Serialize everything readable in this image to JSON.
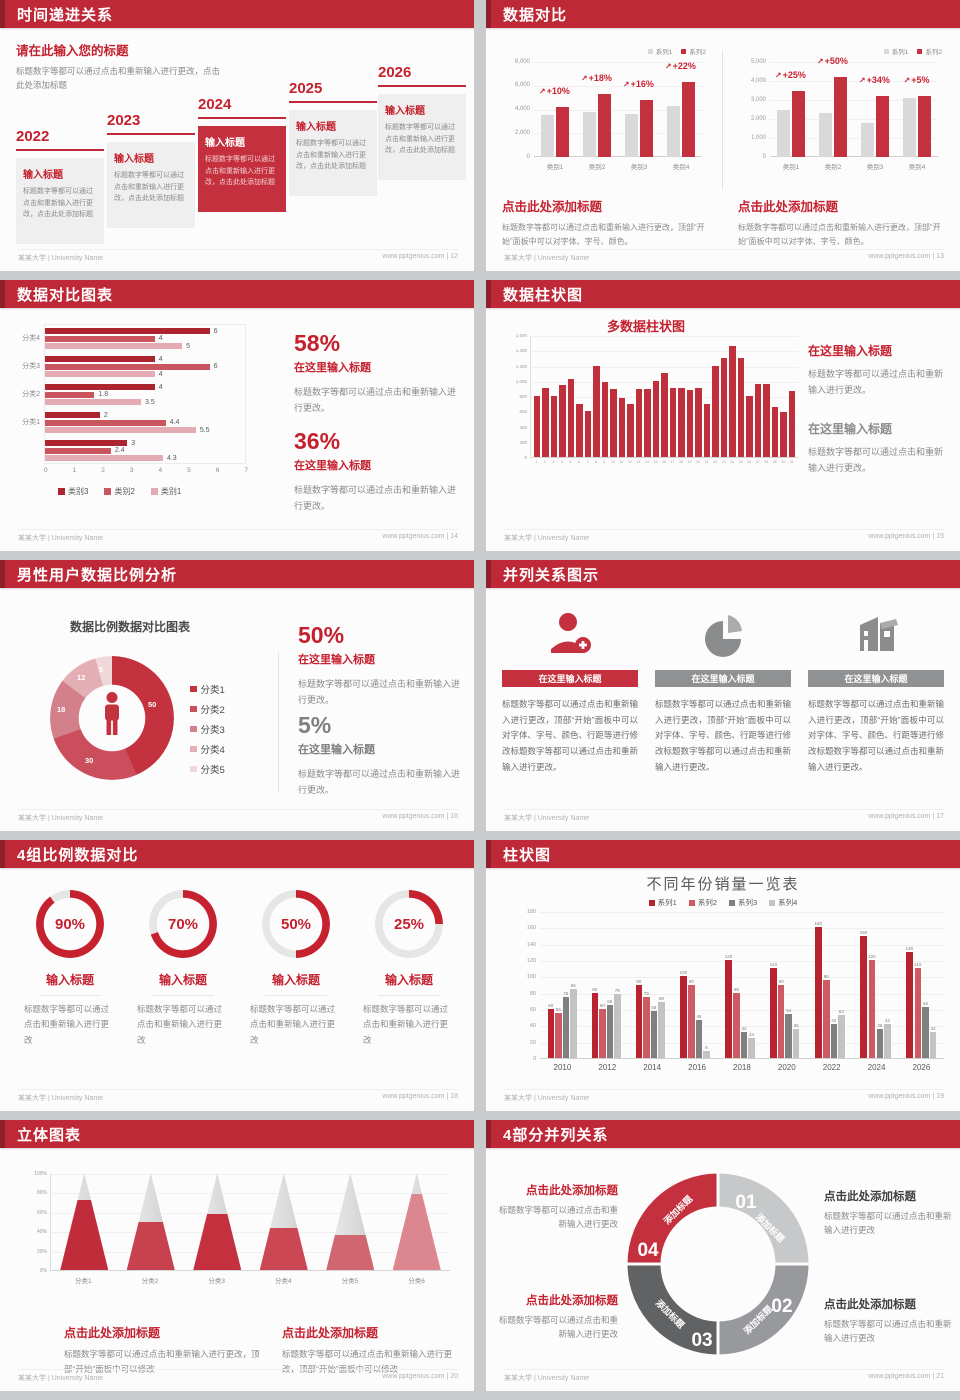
{
  "page": {
    "bg": "#C9CBCD",
    "slide_bg": "#FCFCFC",
    "accent_red": "#C5303E",
    "header_red": "#BE2837"
  },
  "footer": {
    "left": "某某大学 | University Name"
  },
  "slides": {
    "s1": {
      "title": "时间递进关系",
      "footer_right": "www.pptgenius.com | 12",
      "intro_title": "请在此输入您的标题",
      "intro_body": "标题数字等都可以通过点击和重新输入进行更改，点击此处添加标题",
      "items": [
        {
          "year": "2022",
          "t": "输入标题",
          "b": "标题数字等都可以通过点击和重新输入进行更改，点击此处添加标题"
        },
        {
          "year": "2023",
          "t": "输入标题",
          "b": "标题数字等都可以通过点击和重新输入进行更改，点击此处添加标题"
        },
        {
          "year": "2024",
          "t": "输入标题",
          "b": "标题数字等都可以通过点击和重新输入进行更改，点击此处添加标题"
        },
        {
          "year": "2025",
          "t": "输入标题",
          "b": "标题数字等都可以通过点击和重新输入进行更改，点击此处添加标题"
        },
        {
          "year": "2026",
          "t": "输入标题",
          "b": "标题数字等都可以通过点击和重新输入进行更改，点击此处添加标题"
        }
      ]
    },
    "s2": {
      "title": "数据对比",
      "footer_right": "www.pptgenius.com | 13",
      "caption_title": "点击此处添加标题",
      "caption_body": "标题数字等都可以通过点击和重新输入进行更改，顶部“开始”面板中可以对字体、字号、颜色。"
    },
    "s3": {
      "title": "数据对比图表",
      "footer_right": "www.pptgenius.com | 14",
      "stat1": {
        "pct": "58%",
        "t": "在这里输入标题",
        "b": "标题数字等都可以通过点击和重新输入进行更改。"
      },
      "stat2": {
        "pct": "36%",
        "t": "在这里输入标题",
        "b": "标题数字等都可以通过点击和重新输入进行更改。"
      }
    },
    "s4": {
      "title": "数据柱状图",
      "footer_right": "www.pptgenius.com | 15",
      "chart_title": "多数据柱状图",
      "block1": {
        "t": "在这里输入标题",
        "b": "标题数字等都可以通过点击和重新输入进行更改。"
      },
      "block2": {
        "t": "在这里输入标题",
        "b": "标题数字等都可以通过点击和重新输入进行更改。"
      }
    },
    "s5": {
      "title": "男性用户数据比例分析",
      "footer_right": "www.pptgenius.com | 16",
      "chart_title": "数据比例数据对比图表",
      "stat1": {
        "pct": "50%",
        "t": "在这里输入标题",
        "b": "标题数字等都可以通过点击和重新输入进行更改。"
      },
      "stat2": {
        "pct": "5%",
        "t": "在这里输入标题",
        "b": "标题数字等都可以通过点击和重新输入进行更改。"
      }
    },
    "s6": {
      "title": "并列关系图示",
      "footer_right": "www.pptgenius.com | 17",
      "cols": [
        {
          "t": "在这里输入标题",
          "b": "标题数字等都可以通过点击和重新输入进行更改，顶部“开始”面板中可以对字体、字号、颜色、行距等进行修改标题数字等都可以通过点击和重新输入进行更改。"
        },
        {
          "t": "在这里输入标题",
          "b": "标题数字等都可以通过点击和重新输入进行更改，顶部“开始”面板中可以对字体、字号、颜色、行距等进行修改标题数字等都可以通过点击和重新输入进行更改。"
        },
        {
          "t": "在这里输入标题",
          "b": "标题数字等都可以通过点击和重新输入进行更改，顶部“开始”面板中可以对字体、字号、颜色、行距等进行修改标题数字等都可以通过点击和重新输入进行更改。"
        }
      ]
    },
    "s7": {
      "title": "4组比例数据对比",
      "footer_right": "www.pptgenius.com | 18",
      "items": [
        {
          "pct": "90%",
          "t": "输入标题",
          "b": "标题数字等都可以通过点击和重新输入进行更改"
        },
        {
          "pct": "70%",
          "t": "输入标题",
          "b": "标题数字等都可以通过点击和重新输入进行更改"
        },
        {
          "pct": "50%",
          "t": "输入标题",
          "b": "标题数字等都可以通过点击和重新输入进行更改"
        },
        {
          "pct": "25%",
          "t": "输入标题",
          "b": "标题数字等都可以通过点击和重新输入进行更改"
        }
      ]
    },
    "s8": {
      "title": "柱状图",
      "footer_right": "www.pptgenius.com | 19",
      "chart_title": "不同年份销量一览表"
    },
    "s9": {
      "title": "立体图表",
      "footer_right": "www.pptgenius.com | 20",
      "cap1": {
        "t": "点击此处添加标题",
        "b": "标题数字等都可以通过点击和重新输入进行更改，顶部“开始”面板中可以修改"
      },
      "cap2": {
        "t": "点击此处添加标题",
        "b": "标题数字等都可以通过点击和重新输入进行更改，顶部“开始”面板中可以修改"
      }
    },
    "s10": {
      "title": "4部分并列关系",
      "footer_right": "www.pptgenius.com | 21",
      "blocks": [
        {
          "t": "点击此处添加标题",
          "b": "标题数字等都可以通过点击和重新输入进行更改"
        },
        {
          "t": "点击此处添加标题",
          "b": "标题数字等都可以通过点击和重新输入进行更改"
        },
        {
          "t": "点击此处添加标题",
          "b": "标题数字等都可以通过点击和重新输入进行更改"
        },
        {
          "t": "点击此处添加标题",
          "b": "标题数字等都可以通过点击和重新输入进行更改"
        }
      ],
      "segments": [
        {
          "num": "01",
          "label": "添加标题",
          "color": "#C7C8CA"
        },
        {
          "num": "02",
          "label": "添加标题",
          "color": "#97999C"
        },
        {
          "num": "03",
          "label": "添加标题",
          "color": "#606264"
        },
        {
          "num": "04",
          "label": "添加标题",
          "color": "#C5303E"
        }
      ]
    }
  },
  "chart_data": [
    {
      "id": "cmp_left",
      "type": "bar",
      "categories": [
        "类别1",
        "类别2",
        "类别3",
        "类别4"
      ],
      "series": [
        {
          "name": "系列1",
          "color": "#D9D9D9",
          "values": [
            3500,
            3800,
            3600,
            4300
          ]
        },
        {
          "name": "系列2",
          "color": "#C4313E",
          "values": [
            4200,
            5300,
            4800,
            6300
          ]
        }
      ],
      "growth_labels": [
        "+10%",
        "+18%",
        "+16%",
        "+22%"
      ],
      "ylim": [
        0,
        8000
      ],
      "yticks": [
        "0",
        "2,000",
        "4,000",
        "6,000",
        "8,000"
      ],
      "legend_position": "top-right",
      "grid": true
    },
    {
      "id": "cmp_right",
      "type": "bar",
      "categories": [
        "类别1",
        "类别2",
        "类别3",
        "类别4"
      ],
      "series": [
        {
          "name": "系列1",
          "color": "#D9D9D9",
          "values": [
            2500,
            2300,
            1800,
            3100
          ]
        },
        {
          "name": "系列2",
          "color": "#C4313E",
          "values": [
            3500,
            4200,
            3200,
            3200
          ]
        }
      ],
      "growth_labels": [
        "+25%",
        "+50%",
        "+34%",
        "+5%"
      ],
      "ylim": [
        0,
        5000
      ],
      "yticks": [
        "0",
        "1,000",
        "2,000",
        "3,000",
        "4,000",
        "5,000"
      ],
      "legend_position": "top-right",
      "grid": true
    },
    {
      "id": "hbar",
      "type": "bar-horizontal",
      "groups": [
        "分类4",
        "分类3",
        "分类2",
        "分类1",
        ""
      ],
      "series": [
        {
          "name": "类别3",
          "color": "#AC2430",
          "values": [
            6,
            4,
            4,
            2,
            3
          ]
        },
        {
          "name": "类别2",
          "color": "#C9565F",
          "values": [
            4,
            6,
            1.8,
            4.4,
            2.4
          ]
        },
        {
          "name": "类别1",
          "color": "#E4ACB2",
          "values": [
            5,
            4,
            3.5,
            5.5,
            4.3
          ]
        }
      ],
      "xlim": [
        0,
        7
      ],
      "xticks": [
        "0",
        "1",
        "2",
        "3",
        "4",
        "5",
        "6",
        "7"
      ],
      "legend_position": "bottom"
    },
    {
      "id": "col31",
      "type": "bar",
      "title": "多数据柱状图",
      "color": "#C0303C",
      "categories": [
        "1",
        "2",
        "3",
        "4",
        "5",
        "6",
        "7",
        "8",
        "9",
        "10",
        "11",
        "12",
        "13",
        "14",
        "15",
        "16",
        "17",
        "18",
        "19",
        "20",
        "21",
        "22",
        "23",
        "24",
        "25",
        "26",
        "27",
        "28",
        "29",
        "30",
        "31"
      ],
      "values": [
        800,
        900,
        800,
        950,
        1020,
        700,
        600,
        1200,
        980,
        890,
        780,
        700,
        890,
        890,
        1000,
        1100,
        900,
        900,
        880,
        900,
        700,
        1200,
        1300,
        1450,
        1300,
        800,
        960,
        960,
        660,
        590,
        870
      ],
      "ylim": [
        0,
        1600
      ],
      "yticks": [
        "0",
        "200",
        "400",
        "600",
        "800",
        "1,000",
        "1,200",
        "1,400",
        "1,600"
      ]
    },
    {
      "id": "donut",
      "type": "pie",
      "title": "数据比例数据对比图表",
      "labels": [
        "分类1",
        "分类2",
        "分类3",
        "分类4",
        "分类5"
      ],
      "values": [
        50,
        30,
        18,
        12,
        5
      ],
      "colors": [
        "#C43240",
        "#CA4E5B",
        "#D4808A",
        "#E3AFB5",
        "#F0D8DA"
      ],
      "legend_position": "right",
      "center_icon": "male-person"
    },
    {
      "id": "gauges",
      "type": "pie",
      "subtype": "progress-ring",
      "values": [
        90,
        70,
        50,
        25
      ],
      "unit": "%",
      "color": "#C5212E",
      "track_color": "#E6E6E6"
    },
    {
      "id": "years",
      "type": "bar",
      "title": "不同年份销量一览表",
      "categories": [
        "2010",
        "2012",
        "2014",
        "2016",
        "2018",
        "2020",
        "2022",
        "2024",
        "2026"
      ],
      "series": [
        {
          "name": "系列1",
          "color": "#B8232F",
          "values": [
            60,
            80,
            90,
            100,
            120,
            110,
            160,
            150,
            130
          ]
        },
        {
          "name": "系列2",
          "color": "#CE5A63",
          "values": [
            55,
            60,
            75,
            90,
            80,
            90,
            96,
            120,
            110
          ]
        },
        {
          "name": "系列3",
          "color": "#808080",
          "values": [
            75,
            65,
            58,
            46,
            32,
            54,
            42,
            36,
            62
          ]
        },
        {
          "name": "系列4",
          "color": "#C3C3C3",
          "values": [
            85,
            78,
            68,
            8,
            24,
            36,
            53,
            42,
            32
          ]
        }
      ],
      "ylim": [
        0,
        180
      ],
      "ytick_step": 20,
      "legend_position": "top",
      "grid": true
    },
    {
      "id": "cones",
      "type": "bar",
      "subtype": "cone-3d",
      "categories": [
        "分类1",
        "分类2",
        "分类3",
        "分类4",
        "分类5",
        "分类6"
      ],
      "values_pct": [
        72,
        50,
        58,
        43,
        36,
        78
      ],
      "colors": [
        "#C12C3B",
        "#C8414E",
        "#C5303E",
        "#CB4754",
        "#D06670",
        "#DC8790"
      ],
      "yticks": [
        "0%",
        "20%",
        "40%",
        "60%",
        "80%",
        "100%"
      ]
    }
  ]
}
